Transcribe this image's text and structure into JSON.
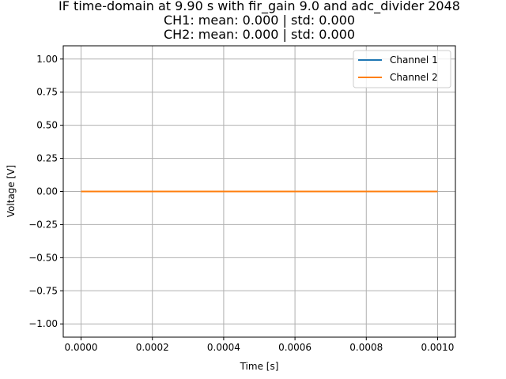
{
  "chart_data": {
    "type": "line",
    "title_lines": [
      "IF time-domain at 9.90 s with fir_gain 9.0 and adc_divider 2048",
      "CH1: mean: 0.000 | std: 0.000",
      "CH2: mean: 0.000 | std: 0.000"
    ],
    "xlabel": "Time [s]",
    "ylabel": "Voltage [V]",
    "xlim": [
      -5e-05,
      0.00105
    ],
    "ylim": [
      -1.1,
      1.1
    ],
    "xticks": [
      0.0,
      0.0002,
      0.0004,
      0.0006,
      0.0008,
      0.001
    ],
    "xtick_labels": [
      "0.0000",
      "0.0002",
      "0.0004",
      "0.0006",
      "0.0008",
      "0.0010"
    ],
    "yticks": [
      1.0,
      0.75,
      0.5,
      0.25,
      0.0,
      -0.25,
      -0.5,
      -0.75,
      -1.0
    ],
    "ytick_labels": [
      "1.00",
      "0.75",
      "0.50",
      "0.25",
      "0.00",
      "−0.25",
      "−0.50",
      "−0.75",
      "−1.00"
    ],
    "grid": true,
    "legend_position": "top-right",
    "series": [
      {
        "name": "Channel 1",
        "color": "#1f77b4",
        "x": [
          0.0,
          0.001
        ],
        "y": [
          0.0,
          0.0
        ]
      },
      {
        "name": "Channel 2",
        "color": "#ff7f0e",
        "x": [
          0.0,
          0.001
        ],
        "y": [
          0.0,
          0.0
        ]
      }
    ]
  }
}
